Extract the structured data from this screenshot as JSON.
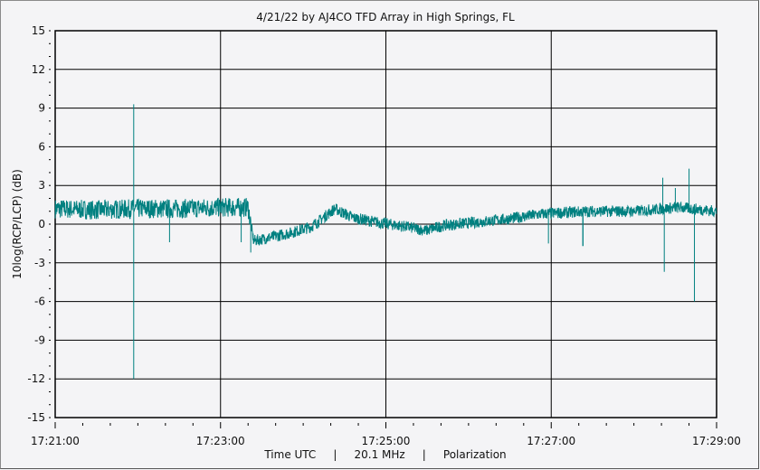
{
  "chart_data": {
    "type": "line",
    "title": "4/21/22  by  AJ4CO TFD Array  in  High Springs, FL",
    "xlabel": "Time UTC     |     20.1 MHz     |     Polarization",
    "ylabel": "10log(RCP/LCP) (dB)",
    "xlim": [
      "17:21:00",
      "17:29:00"
    ],
    "ylim": [
      -15,
      15
    ],
    "x_ticks": [
      "17:21:00",
      "17:23:00",
      "17:25:00",
      "17:27:00",
      "17:29:00"
    ],
    "y_ticks": [
      15,
      12,
      9,
      6,
      3,
      0,
      -3,
      -6,
      -9,
      -12,
      -15
    ],
    "grid": true,
    "line_color": "#008080",
    "series": [
      {
        "trend": [
          [
            "17:21:00",
            1.2
          ],
          [
            "17:21:30",
            1.1
          ],
          [
            "17:22:00",
            1.2
          ],
          [
            "17:22:30",
            1.2
          ],
          [
            "17:23:00",
            1.3
          ],
          [
            "17:23:20",
            1.3
          ],
          [
            "17:23:24",
            -1.3
          ],
          [
            "17:23:50",
            -0.7
          ],
          [
            "17:24:06",
            -0.2
          ],
          [
            "17:24:23",
            1.2
          ],
          [
            "17:24:36",
            0.5
          ],
          [
            "17:24:56",
            0.1
          ],
          [
            "17:25:15",
            -0.2
          ],
          [
            "17:25:29",
            -0.5
          ],
          [
            "17:25:42",
            -0.1
          ],
          [
            "17:26:01",
            0.1
          ],
          [
            "17:26:28",
            0.4
          ],
          [
            "17:26:54",
            0.8
          ],
          [
            "17:27:27",
            1.0
          ],
          [
            "17:28:00",
            1.0
          ],
          [
            "17:28:32",
            1.3
          ],
          [
            "17:29:00",
            1.0
          ]
        ],
        "spikes": [
          [
            "17:21:57",
            9.3
          ],
          [
            "17:21:57",
            -12.0
          ],
          [
            "17:22:23",
            -1.4
          ],
          [
            "17:23:15",
            -1.4
          ],
          [
            "17:23:22",
            -2.2
          ],
          [
            "17:26:58",
            -1.5
          ],
          [
            "17:27:23",
            -1.7
          ],
          [
            "17:28:21",
            3.6
          ],
          [
            "17:28:22",
            -3.7
          ],
          [
            "17:28:30",
            2.8
          ],
          [
            "17:28:40",
            4.3
          ],
          [
            "17:28:44",
            -6.0
          ]
        ]
      }
    ]
  }
}
